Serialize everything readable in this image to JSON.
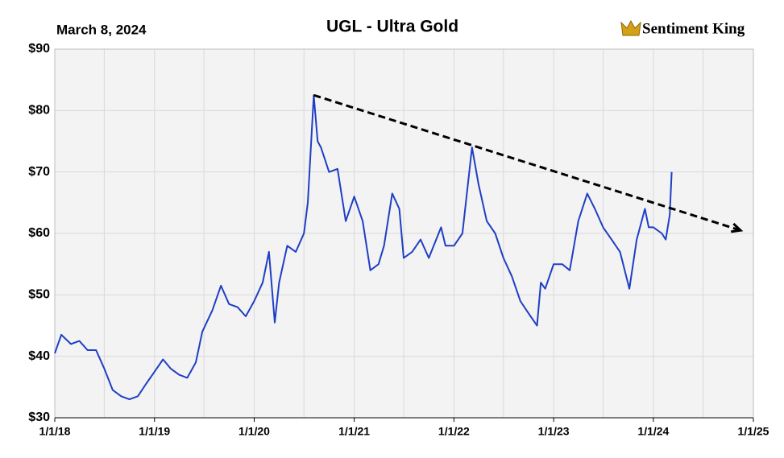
{
  "chart_data": {
    "type": "line",
    "title": "UGL - Ultra Gold",
    "subtitle": "March 8, 2024",
    "brand": "Sentiment King",
    "x": [
      "1/1/18",
      "1/25/18",
      "3/1/18",
      "4/1/18",
      "5/1/18",
      "6/1/18",
      "7/1/18",
      "8/1/18",
      "9/1/18",
      "10/1/18",
      "11/1/18",
      "12/1/18",
      "1/1/19",
      "2/1/19",
      "3/1/19",
      "4/1/19",
      "5/1/19",
      "6/1/19",
      "6/25/19",
      "8/1/19",
      "9/1/19",
      "10/1/19",
      "11/1/19",
      "12/1/19",
      "1/1/20",
      "2/1/20",
      "2/24/20",
      "3/16/20",
      "4/1/20",
      "5/1/20",
      "6/1/20",
      "7/1/20",
      "7/15/20",
      "8/6/20",
      "8/20/20",
      "9/1/20",
      "10/1/20",
      "11/1/20",
      "12/1/20",
      "1/1/21",
      "2/1/21",
      "3/1/21",
      "3/31/21",
      "4/20/21",
      "5/20/21",
      "6/15/21",
      "7/1/21",
      "8/1/21",
      "9/1/21",
      "10/1/21",
      "11/15/21",
      "12/1/21",
      "1/1/22",
      "2/1/22",
      "3/8/22",
      "4/1/22",
      "5/1/22",
      "6/1/22",
      "7/1/22",
      "8/1/22",
      "9/1/22",
      "10/1/22",
      "11/1/22",
      "11/15/22",
      "12/1/22",
      "1/1/23",
      "2/1/23",
      "3/1/23",
      "4/1/23",
      "5/4/23",
      "6/1/23",
      "7/1/23",
      "8/1/23",
      "9/1/23",
      "10/5/23",
      "11/1/23",
      "12/1/23",
      "12/15/23",
      "1/1/24",
      "2/1/24",
      "2/15/24",
      "3/1/24",
      "3/8/24"
    ],
    "series": [
      {
        "name": "UGL",
        "color": "#1f3fc4",
        "values": [
          40.5,
          43.5,
          42,
          42.5,
          41,
          41,
          38,
          34.5,
          33.5,
          33,
          33.5,
          35.5,
          37.5,
          39.5,
          38,
          37,
          36.5,
          39,
          44,
          47.5,
          51.5,
          48.5,
          48,
          46.5,
          49,
          52,
          57,
          45.5,
          52,
          58,
          57,
          60,
          65,
          82.5,
          75,
          74,
          70,
          70.5,
          62,
          66,
          62,
          54,
          55,
          58,
          66.5,
          64,
          56,
          57,
          59,
          56,
          61,
          58,
          58,
          60,
          74,
          68,
          62,
          60,
          56,
          53,
          49,
          47,
          45,
          52,
          51,
          55,
          55,
          54,
          62,
          66.5,
          64,
          61,
          59,
          57,
          51,
          59,
          64,
          61,
          61,
          60,
          59,
          63,
          70
        ]
      }
    ],
    "trendline": {
      "x": [
        "8/6/20",
        "11/15/24"
      ],
      "values": [
        82.5,
        60.5
      ],
      "color": "#000000"
    },
    "xlim": [
      "1/1/18",
      "1/1/25"
    ],
    "xticks": [
      "1/1/18",
      "1/1/19",
      "1/1/20",
      "1/1/21",
      "1/1/22",
      "1/1/23",
      "1/1/24",
      "1/1/25"
    ],
    "xminor": [
      "7/1/18",
      "7/1/19",
      "7/1/20",
      "7/1/21",
      "7/1/22",
      "7/1/23",
      "7/1/24"
    ],
    "ylim": [
      30,
      90
    ],
    "yticks": [
      {
        "value": 30,
        "label": "$30"
      },
      {
        "value": 40,
        "label": "$40"
      },
      {
        "value": 50,
        "label": "$50"
      },
      {
        "value": 60,
        "label": "$60"
      },
      {
        "value": 70,
        "label": "$70"
      },
      {
        "value": 80,
        "label": "$80"
      },
      {
        "value": 90,
        "label": "$90"
      }
    ],
    "grid": true
  }
}
